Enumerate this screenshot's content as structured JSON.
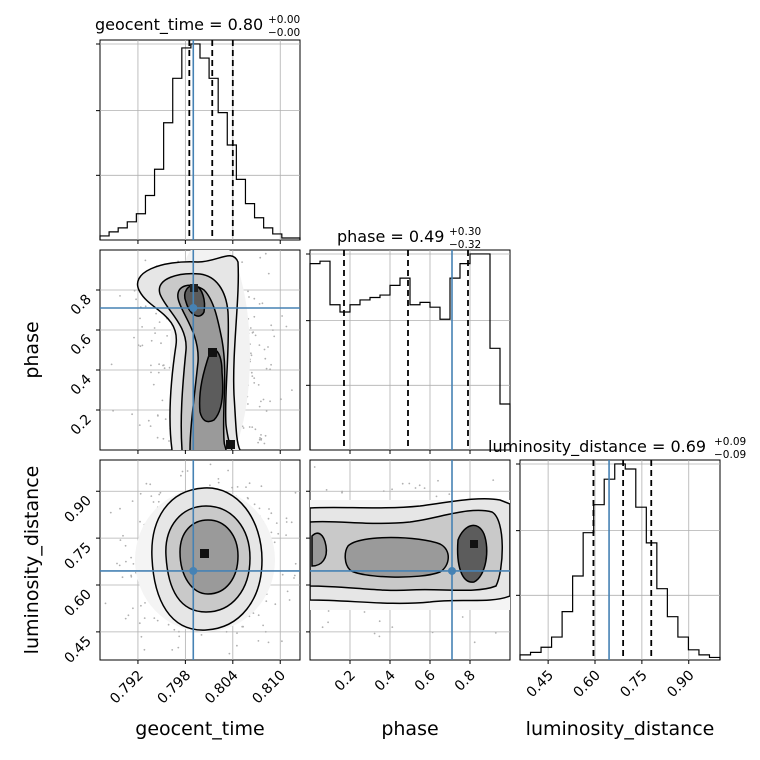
{
  "chart_data": {
    "type": "corner",
    "parameters": [
      "geocent_time",
      "phase",
      "luminosity_distance"
    ],
    "truths": {
      "geocent_time": 0.799,
      "phase": 0.71,
      "luminosity_distance": 0.645
    },
    "titles": [
      {
        "param": "geocent_time",
        "label": "geocent_time = 0.80",
        "sup": "+0.00",
        "sub": "−0.00"
      },
      {
        "param": "phase",
        "label": "phase = 0.49",
        "sup": "+0.30",
        "sub": "−0.32"
      },
      {
        "param": "luminosity_distance",
        "label": "luminosity_distance = 0.69",
        "sup": "+0.09",
        "sub": "−0.09"
      }
    ],
    "axes": {
      "geocent_time": {
        "range": [
          0.7872,
          0.8125
        ],
        "ticks": [
          0.792,
          0.798,
          0.804,
          0.81
        ],
        "tick_labels": [
          "0.792",
          "0.798",
          "0.804",
          "0.810"
        ],
        "label": "geocent_time"
      },
      "phase": {
        "range": [
          0.0,
          1.0
        ],
        "ticks": [
          0.2,
          0.4,
          0.6,
          0.8
        ],
        "tick_labels": [
          "0.2",
          "0.4",
          "0.6",
          "0.8"
        ],
        "label": "phase"
      },
      "luminosity_distance": {
        "range": [
          0.36,
          1.0
        ],
        "ticks": [
          0.45,
          0.6,
          0.75,
          0.9
        ],
        "tick_labels": [
          "0.45",
          "0.60",
          "0.75",
          "0.90"
        ],
        "label": "luminosity_distance"
      }
    },
    "histograms": [
      {
        "param": "geocent_time",
        "counts": [
          2,
          4,
          6,
          9,
          13,
          22,
          35,
          58,
          80,
          95,
          97,
          90,
          80,
          63,
          47,
          30,
          18,
          11,
          6,
          3,
          1,
          1
        ],
        "quantiles": [
          0.7985,
          0.8014,
          0.804
        ]
      },
      {
        "param": "phase",
        "counts": [
          77,
          78,
          60,
          57,
          60,
          62,
          63,
          64,
          68,
          71,
          60,
          61,
          59,
          54,
          71,
          77,
          81,
          81,
          42,
          19
        ],
        "quantiles": [
          0.17,
          0.49,
          0.79
        ]
      },
      {
        "param": "luminosity_distance",
        "counts": [
          2,
          3,
          5,
          9,
          19,
          33,
          50,
          61,
          71,
          77,
          75,
          60,
          46,
          28,
          17,
          9,
          4,
          2,
          1
        ],
        "quantiles": [
          0.595,
          0.69,
          0.78
        ]
      }
    ],
    "grid": true,
    "colors": {
      "truth": "#4682b4",
      "contour": "#000000",
      "hist": "#000000",
      "points": "#b0b0b0"
    }
  }
}
